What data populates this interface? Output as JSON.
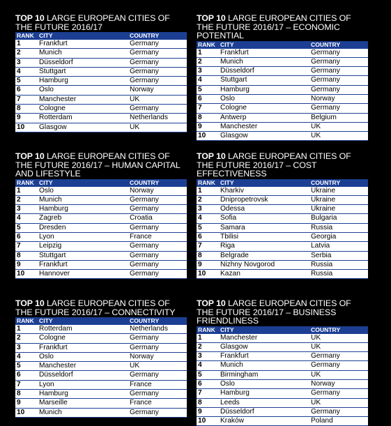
{
  "columns": {
    "rank": "RANK",
    "city": "CITY",
    "country": "COUNTRY"
  },
  "panels": [
    {
      "top10": "TOP 10",
      "title": "LARGE EUROPEAN CITIES OF THE FUTURE 2016/17",
      "rows": [
        {
          "rank": "1",
          "city": "Frankfurt",
          "country": "Germany"
        },
        {
          "rank": "2",
          "city": "Munich",
          "country": "Germany"
        },
        {
          "rank": "3",
          "city": "Düsseldorf",
          "country": "Germany"
        },
        {
          "rank": "4",
          "city": "Stuttgart",
          "country": "Germany"
        },
        {
          "rank": "5",
          "city": "Hamburg",
          "country": "Germany"
        },
        {
          "rank": "6",
          "city": "Oslo",
          "country": "Norway"
        },
        {
          "rank": "7",
          "city": "Manchester",
          "country": "UK"
        },
        {
          "rank": "8",
          "city": "Cologne",
          "country": "Germany"
        },
        {
          "rank": "9",
          "city": "Rotterdam",
          "country": "Netherlands"
        },
        {
          "rank": "10",
          "city": "Glasgow",
          "country": "UK"
        }
      ]
    },
    {
      "top10": "TOP 10",
      "title": "LARGE EUROPEAN CITIES OF THE FUTURE 2016/17 – ECONOMIC POTENTIAL",
      "rows": [
        {
          "rank": "1",
          "city": "Frankfurt",
          "country": "Germany"
        },
        {
          "rank": "2",
          "city": "Munich",
          "country": "Germany"
        },
        {
          "rank": "3",
          "city": "Düsseldorf",
          "country": "Germany"
        },
        {
          "rank": "4",
          "city": "Stuttgart",
          "country": "Germany"
        },
        {
          "rank": "5",
          "city": "Hamburg",
          "country": "Germany"
        },
        {
          "rank": "6",
          "city": "Oslo",
          "country": "Norway"
        },
        {
          "rank": "7",
          "city": "Cologne",
          "country": "Germany"
        },
        {
          "rank": "8",
          "city": "Antwerp",
          "country": "Belgium"
        },
        {
          "rank": "9",
          "city": "Manchester",
          "country": "UK"
        },
        {
          "rank": "10",
          "city": "Glasgow",
          "country": "UK"
        }
      ]
    },
    {
      "top10": "TOP 10",
      "title": "LARGE EUROPEAN CITIES OF THE FUTURE 2016/17 – HUMAN CAPITAL AND LIFESTYLE",
      "rows": [
        {
          "rank": "1",
          "city": "Oslo",
          "country": "Norway"
        },
        {
          "rank": "2",
          "city": "Munich",
          "country": "Germany"
        },
        {
          "rank": "3",
          "city": "Hamburg",
          "country": "Germany"
        },
        {
          "rank": "4",
          "city": "Zagreb",
          "country": "Croatia"
        },
        {
          "rank": "5",
          "city": "Dresden",
          "country": "Germany"
        },
        {
          "rank": "6",
          "city": "Lyon",
          "country": "France"
        },
        {
          "rank": "7",
          "city": "Leipzig",
          "country": "Germany"
        },
        {
          "rank": "8",
          "city": "Stuttgart",
          "country": "Germany"
        },
        {
          "rank": "9",
          "city": "Frankfurt",
          "country": "Germany"
        },
        {
          "rank": "10",
          "city": "Hannover",
          "country": "Germany"
        }
      ]
    },
    {
      "top10": "TOP 10",
      "title": "LARGE EUROPEAN CITIES OF THE FUTURE 2016/17 – COST EFFECTIVENESS",
      "rows": [
        {
          "rank": "1",
          "city": "Kharkiv",
          "country": "Ukraine"
        },
        {
          "rank": "2",
          "city": "Dnipropetrovsk",
          "country": "Ukraine"
        },
        {
          "rank": "3",
          "city": "Odessa",
          "country": "Ukraine"
        },
        {
          "rank": "4",
          "city": "Sofia",
          "country": "Bulgaria"
        },
        {
          "rank": "5",
          "city": "Samara",
          "country": "Russia"
        },
        {
          "rank": "6",
          "city": "Tbilisi",
          "country": "Georgia"
        },
        {
          "rank": "7",
          "city": "Riga",
          "country": "Latvia"
        },
        {
          "rank": "8",
          "city": "Belgrade",
          "country": "Serbia"
        },
        {
          "rank": "9",
          "city": "Nizhny Novgorod",
          "country": "Russia"
        },
        {
          "rank": "10",
          "city": "Kazan",
          "country": "Russia"
        }
      ]
    },
    {
      "top10": "TOP 10",
      "title": "LARGE EUROPEAN CITIES OF THE FUTURE 2016/17 – CONNECTIVITY",
      "rows": [
        {
          "rank": "1",
          "city": "Rotterdam",
          "country": "Netherlands"
        },
        {
          "rank": "2",
          "city": "Cologne",
          "country": "Germany"
        },
        {
          "rank": "3",
          "city": "Frankfurt",
          "country": "Germany"
        },
        {
          "rank": "4",
          "city": "Oslo",
          "country": "Norway"
        },
        {
          "rank": "5",
          "city": "Manchester",
          "country": "UK"
        },
        {
          "rank": "6",
          "city": "Düsseldorf",
          "country": "Germany"
        },
        {
          "rank": "7",
          "city": "Lyon",
          "country": "France"
        },
        {
          "rank": "8",
          "city": "Hamburg",
          "country": "Germany"
        },
        {
          "rank": "9",
          "city": "Marseille",
          "country": "France"
        },
        {
          "rank": "10",
          "city": "Munich",
          "country": "Germany"
        }
      ]
    },
    {
      "top10": "TOP 10",
      "title": "LARGE EUROPEAN CITIES OF THE FUTURE 2016/17 – BUSINESS FRIENDLINESS",
      "rows": [
        {
          "rank": "1",
          "city": "Manchester",
          "country": "UK"
        },
        {
          "rank": "2",
          "city": "Glasgow",
          "country": "UK"
        },
        {
          "rank": "3",
          "city": "Frankfurt",
          "country": "Germany"
        },
        {
          "rank": "4",
          "city": "Munich",
          "country": "Germany"
        },
        {
          "rank": "5",
          "city": "Birmingham",
          "country": "UK"
        },
        {
          "rank": "6",
          "city": "Oslo",
          "country": "Norway"
        },
        {
          "rank": "7",
          "city": "Hamburg",
          "country": "Germany"
        },
        {
          "rank": "8",
          "city": "Leeds",
          "country": "UK"
        },
        {
          "rank": "9",
          "city": "Düsseldorf",
          "country": "Germany"
        },
        {
          "rank": "10",
          "city": "Kraków",
          "country": "Poland"
        }
      ]
    }
  ]
}
